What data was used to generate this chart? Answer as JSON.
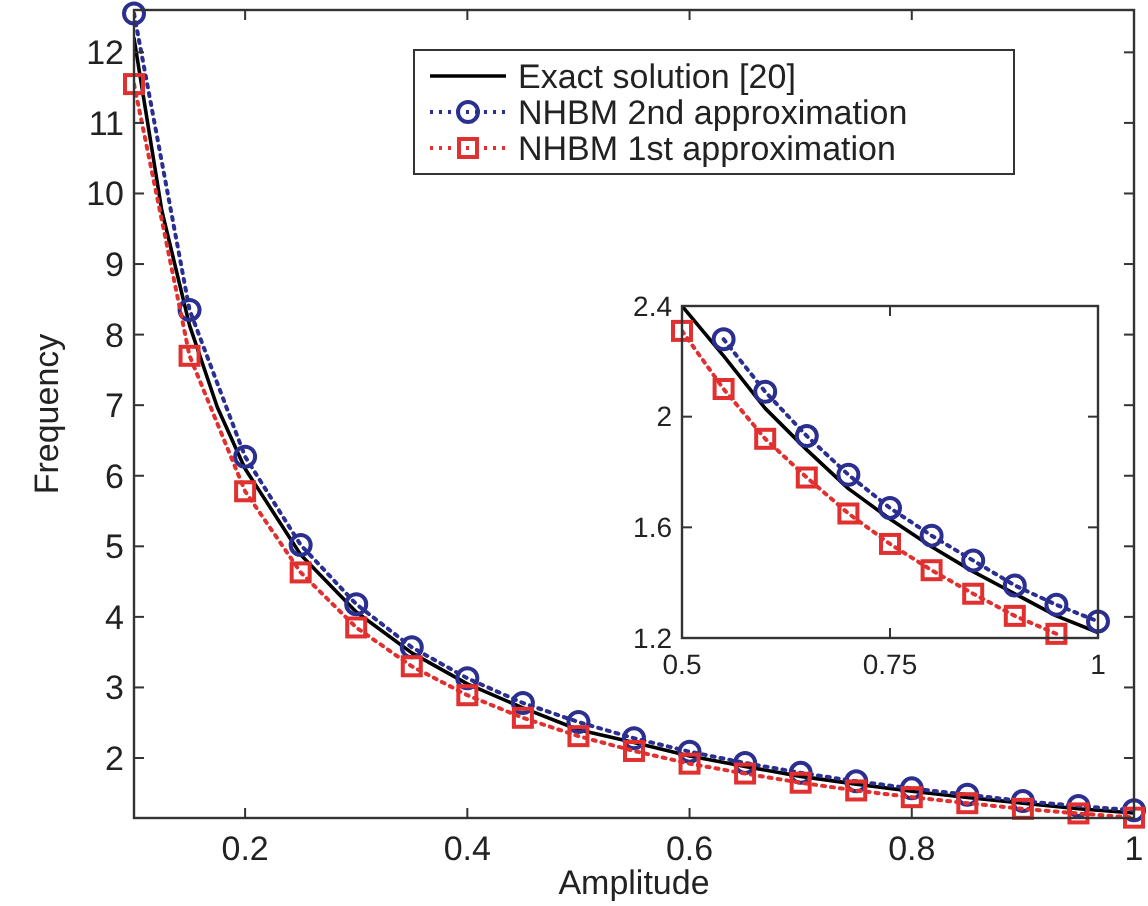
{
  "chart_data": [
    {
      "type": "line",
      "xlabel": "Amplitude",
      "ylabel": "Frequency",
      "xlim": [
        0.1,
        1
      ],
      "ylim": [
        1.15,
        12.6
      ],
      "xticks": [
        0.2,
        0.4,
        0.6,
        0.8,
        1
      ],
      "yticks": [
        2,
        3,
        4,
        5,
        6,
        7,
        8,
        9,
        10,
        11,
        12
      ],
      "grid": false,
      "legend": "top right",
      "series": [
        {
          "name": "Exact solution [20]",
          "color": "#000000",
          "marker": "none",
          "line_style": "solid",
          "x": [
            0.1,
            0.125,
            0.15,
            0.175,
            0.2,
            0.25,
            0.3,
            0.35,
            0.4,
            0.45,
            0.5,
            0.55,
            0.6,
            0.65,
            0.7,
            0.75,
            0.8,
            0.85,
            0.9,
            0.95,
            1
          ],
          "values": [
            12.2,
            9.76,
            8.13,
            6.97,
            6.1,
            4.88,
            4.07,
            3.49,
            3.05,
            2.71,
            2.4,
            2.22,
            2.03,
            1.88,
            1.74,
            1.63,
            1.53,
            1.44,
            1.36,
            1.28,
            1.22
          ]
        },
        {
          "name": "NHBM 2nd approximation",
          "color": "#2b2f8f",
          "marker": "circle",
          "line_style": "dotted",
          "x": [
            0.1,
            0.15,
            0.2,
            0.25,
            0.3,
            0.35,
            0.4,
            0.45,
            0.5,
            0.55,
            0.6,
            0.65,
            0.7,
            0.75,
            0.8,
            0.85,
            0.9,
            0.95,
            1
          ],
          "values": [
            12.55,
            8.35,
            6.27,
            5.02,
            4.18,
            3.57,
            3.13,
            2.78,
            2.51,
            2.28,
            2.09,
            1.93,
            1.79,
            1.67,
            1.57,
            1.48,
            1.39,
            1.32,
            1.26
          ]
        },
        {
          "name": "NHBM 1st approximation",
          "color": "#e03030",
          "marker": "square",
          "line_style": "dotted",
          "x": [
            0.1,
            0.15,
            0.2,
            0.25,
            0.3,
            0.35,
            0.4,
            0.45,
            0.5,
            0.55,
            0.6,
            0.65,
            0.7,
            0.75,
            0.8,
            0.85,
            0.9,
            0.95,
            1
          ],
          "values": [
            11.55,
            7.7,
            5.78,
            4.63,
            3.85,
            3.3,
            2.89,
            2.57,
            2.31,
            2.1,
            1.92,
            1.78,
            1.65,
            1.54,
            1.445,
            1.36,
            1.28,
            1.215,
            1.155
          ]
        }
      ]
    },
    {
      "type": "line",
      "xlim": [
        0.5,
        1
      ],
      "ylim": [
        1.2,
        2.4
      ],
      "xticks": [
        0.5,
        0.75,
        1
      ],
      "yticks": [
        1.2,
        1.6,
        2,
        2.4
      ],
      "grid": false,
      "legend": false,
      "series": [
        {
          "color": "#000000",
          "marker": "none",
          "line_style": "solid",
          "x": [
            0.5,
            0.55,
            0.6,
            0.65,
            0.7,
            0.75,
            0.8,
            0.85,
            0.9,
            0.95,
            1
          ],
          "values": [
            2.4,
            2.22,
            2.03,
            1.88,
            1.74,
            1.63,
            1.53,
            1.44,
            1.36,
            1.28,
            1.22
          ]
        },
        {
          "color": "#2b2f8f",
          "marker": "circle",
          "line_style": "dotted",
          "x": [
            0.55,
            0.6,
            0.65,
            0.7,
            0.75,
            0.8,
            0.85,
            0.9,
            0.95,
            1
          ],
          "values": [
            2.28,
            2.09,
            1.93,
            1.79,
            1.67,
            1.57,
            1.48,
            1.39,
            1.32,
            1.26
          ]
        },
        {
          "color": "#e03030",
          "marker": "square",
          "line_style": "dotted",
          "x": [
            0.5,
            0.55,
            0.6,
            0.65,
            0.7,
            0.75,
            0.8,
            0.85,
            0.9,
            0.95
          ],
          "values": [
            2.31,
            2.1,
            1.92,
            1.78,
            1.65,
            1.54,
            1.445,
            1.36,
            1.28,
            1.215
          ]
        }
      ]
    }
  ]
}
